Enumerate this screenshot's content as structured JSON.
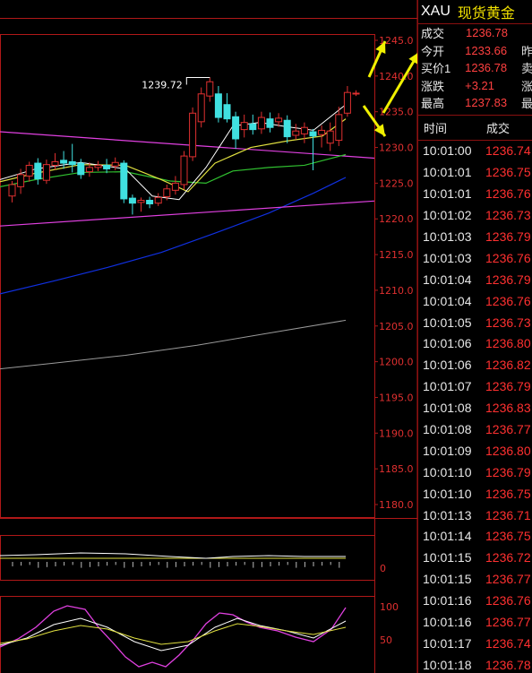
{
  "quote": {
    "code": "XAU",
    "name": "现货黄金",
    "rows": [
      {
        "label": "成交",
        "value": "1236.78",
        "extra": ""
      },
      {
        "label": "今开",
        "value": "1233.66",
        "extra": "昨"
      },
      {
        "label": "买价1",
        "value": "1236.78",
        "extra": "卖"
      },
      {
        "label": "涨跌",
        "value": "+3.21",
        "extra": "涨"
      },
      {
        "label": "最高",
        "value": "1237.83",
        "extra": "最"
      }
    ]
  },
  "trades": {
    "headers": [
      "时间",
      "成交"
    ],
    "rows": [
      {
        "time": "10:01:00",
        "price": "1236.74"
      },
      {
        "time": "10:01:01",
        "price": "1236.75"
      },
      {
        "time": "10:01:01",
        "price": "1236.76"
      },
      {
        "time": "10:01:02",
        "price": "1236.73"
      },
      {
        "time": "10:01:03",
        "price": "1236.79"
      },
      {
        "time": "10:01:03",
        "price": "1236.76"
      },
      {
        "time": "10:01:04",
        "price": "1236.79"
      },
      {
        "time": "10:01:04",
        "price": "1236.76"
      },
      {
        "time": "10:01:05",
        "price": "1236.73"
      },
      {
        "time": "10:01:06",
        "price": "1236.80"
      },
      {
        "time": "10:01:06",
        "price": "1236.82"
      },
      {
        "time": "10:01:07",
        "price": "1236.79"
      },
      {
        "time": "10:01:08",
        "price": "1236.83"
      },
      {
        "time": "10:01:08",
        "price": "1236.77"
      },
      {
        "time": "10:01:09",
        "price": "1236.80"
      },
      {
        "time": "10:01:10",
        "price": "1236.79"
      },
      {
        "time": "10:01:10",
        "price": "1236.75"
      },
      {
        "time": "10:01:13",
        "price": "1236.71"
      },
      {
        "time": "10:01:14",
        "price": "1236.75"
      },
      {
        "time": "10:01:15",
        "price": "1236.72"
      },
      {
        "time": "10:01:15",
        "price": "1236.77"
      },
      {
        "time": "10:01:16",
        "price": "1236.76"
      },
      {
        "time": "10:01:16",
        "price": "1236.77"
      },
      {
        "time": "10:01:17",
        "price": "1236.74"
      },
      {
        "time": "10:01:18",
        "price": "1236.78"
      }
    ]
  },
  "chart_data": {
    "type": "candlestick",
    "price_ticks": [
      "1245.0",
      "1240.0",
      "1235.0",
      "1230.0",
      "1225.0",
      "1220.0",
      "1215.0",
      "1210.0",
      "1205.0",
      "1200.0",
      "1195.0",
      "1190.0",
      "1185.0",
      "1180.0"
    ],
    "ylim": [
      1177.5,
      1245.0
    ],
    "annotation": "1239.72",
    "osc1_ticks": [
      "0"
    ],
    "osc2_ticks": [
      "100",
      "50"
    ],
    "candles": [
      {
        "o": 1223.2,
        "c": 1224.8,
        "h": 1225.3,
        "l": 1222.3
      },
      {
        "o": 1224.5,
        "c": 1226.2,
        "h": 1227.0,
        "l": 1223.5
      },
      {
        "o": 1226.0,
        "c": 1227.5,
        "h": 1228.0,
        "l": 1225.2
      },
      {
        "o": 1227.8,
        "c": 1225.6,
        "h": 1228.5,
        "l": 1224.8
      },
      {
        "o": 1225.4,
        "c": 1227.6,
        "h": 1228.3,
        "l": 1224.9
      },
      {
        "o": 1227.5,
        "c": 1228.0,
        "h": 1229.2,
        "l": 1226.9
      },
      {
        "o": 1228.2,
        "c": 1227.8,
        "h": 1229.5,
        "l": 1227.0
      },
      {
        "o": 1228.0,
        "c": 1227.6,
        "h": 1230.5,
        "l": 1226.5
      },
      {
        "o": 1227.8,
        "c": 1226.2,
        "h": 1228.4,
        "l": 1225.6
      },
      {
        "o": 1226.6,
        "c": 1227.2,
        "h": 1227.9,
        "l": 1225.9
      },
      {
        "o": 1227.2,
        "c": 1227.5,
        "h": 1228.1,
        "l": 1226.7
      },
      {
        "o": 1227.5,
        "c": 1227.0,
        "h": 1228.4,
        "l": 1226.4
      },
      {
        "o": 1227.4,
        "c": 1227.9,
        "h": 1228.6,
        "l": 1226.8
      },
      {
        "o": 1227.8,
        "c": 1222.8,
        "h": 1228.2,
        "l": 1222.2
      },
      {
        "o": 1222.9,
        "c": 1222.2,
        "h": 1223.4,
        "l": 1220.6
      },
      {
        "o": 1222.3,
        "c": 1222.6,
        "h": 1223.0,
        "l": 1221.0
      },
      {
        "o": 1222.6,
        "c": 1222.1,
        "h": 1223.1,
        "l": 1221.5
      },
      {
        "o": 1222.2,
        "c": 1223.0,
        "h": 1223.6,
        "l": 1221.8
      },
      {
        "o": 1223.1,
        "c": 1224.2,
        "h": 1224.8,
        "l": 1222.6
      },
      {
        "o": 1224.0,
        "c": 1225.0,
        "h": 1226.0,
        "l": 1223.4
      },
      {
        "o": 1224.8,
        "c": 1228.8,
        "h": 1229.5,
        "l": 1224.1
      },
      {
        "o": 1228.7,
        "c": 1234.8,
        "h": 1235.6,
        "l": 1228.1
      },
      {
        "o": 1233.6,
        "c": 1237.5,
        "h": 1238.4,
        "l": 1232.8
      },
      {
        "o": 1237.2,
        "c": 1239.2,
        "h": 1239.8,
        "l": 1236.4
      },
      {
        "o": 1237.5,
        "c": 1234.2,
        "h": 1238.6,
        "l": 1233.5
      },
      {
        "o": 1236.0,
        "c": 1234.0,
        "h": 1237.6,
        "l": 1233.5
      },
      {
        "o": 1234.3,
        "c": 1231.2,
        "h": 1235.0,
        "l": 1229.8
      },
      {
        "o": 1232.5,
        "c": 1233.5,
        "h": 1234.6,
        "l": 1231.4
      },
      {
        "o": 1233.3,
        "c": 1232.5,
        "h": 1234.6,
        "l": 1231.8
      },
      {
        "o": 1232.6,
        "c": 1234.2,
        "h": 1235.0,
        "l": 1231.9
      },
      {
        "o": 1234.0,
        "c": 1232.8,
        "h": 1234.9,
        "l": 1232.1
      },
      {
        "o": 1233.6,
        "c": 1234.1,
        "h": 1234.8,
        "l": 1232.9
      },
      {
        "o": 1233.8,
        "c": 1231.5,
        "h": 1234.5,
        "l": 1230.6
      },
      {
        "o": 1231.7,
        "c": 1232.3,
        "h": 1233.3,
        "l": 1231.1
      },
      {
        "o": 1231.9,
        "c": 1232.8,
        "h": 1233.5,
        "l": 1230.6
      },
      {
        "o": 1232.2,
        "c": 1231.6,
        "h": 1232.6,
        "l": 1226.8
      },
      {
        "o": 1231.8,
        "c": 1232.4,
        "h": 1233.1,
        "l": 1230.0
      },
      {
        "o": 1230.6,
        "c": 1232.3,
        "h": 1233.5,
        "l": 1229.5
      },
      {
        "o": 1231.0,
        "c": 1234.6,
        "h": 1235.7,
        "l": 1230.2
      },
      {
        "o": 1234.8,
        "c": 1237.7,
        "h": 1238.6,
        "l": 1234.3
      },
      {
        "o": 1237.5,
        "c": 1237.6,
        "h": 1238.0,
        "l": 1237.2
      }
    ]
  }
}
